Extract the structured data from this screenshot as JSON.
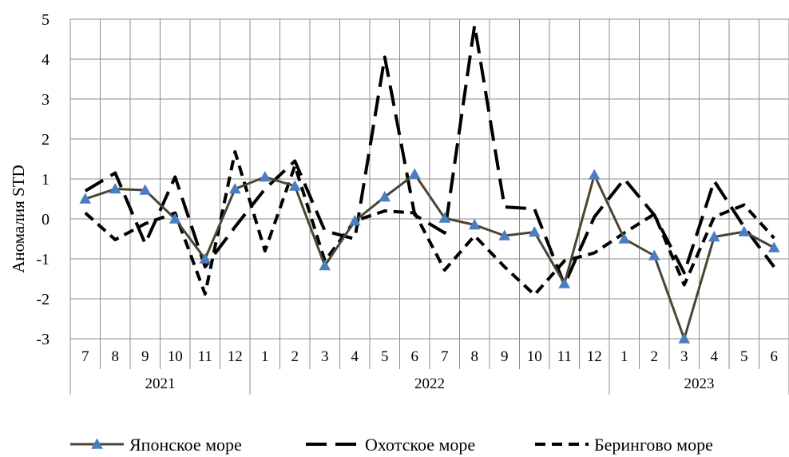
{
  "chart_data": {
    "type": "line",
    "title": "",
    "xlabel": "",
    "ylabel": "Аномалия STD",
    "ylim": [
      -3,
      5
    ],
    "yticks": [
      -3,
      -2,
      -1,
      0,
      1,
      2,
      3,
      4,
      5
    ],
    "grid": true,
    "legend_position": "bottom",
    "categories": [
      "7",
      "8",
      "9",
      "10",
      "11",
      "12",
      "1",
      "2",
      "3",
      "4",
      "5",
      "6",
      "7",
      "8",
      "9",
      "10",
      "11",
      "12",
      "1",
      "2",
      "3",
      "4",
      "5",
      "6"
    ],
    "year_groups": [
      {
        "label": "2021",
        "start": 0,
        "end": 5
      },
      {
        "label": "2022",
        "start": 6,
        "end": 17
      },
      {
        "label": "2023",
        "start": 18,
        "end": 23
      }
    ],
    "series": [
      {
        "name": "Японское море",
        "color": "#4a4433",
        "marker_color": "#4a7ebf",
        "style": "solid-triangle",
        "values": [
          0.5,
          0.75,
          0.72,
          0.0,
          -1.0,
          0.75,
          1.05,
          0.82,
          -1.17,
          -0.05,
          0.55,
          1.12,
          0.02,
          -0.15,
          -0.42,
          -0.33,
          -1.62,
          1.1,
          -0.5,
          -0.92,
          -3.0,
          -0.45,
          -0.32,
          -0.72
        ]
      },
      {
        "name": "Охотское море",
        "color": "#000000",
        "style": "long-dash",
        "values": [
          0.7,
          1.15,
          -0.62,
          1.05,
          -1.2,
          -0.2,
          0.75,
          1.45,
          -0.3,
          -0.5,
          4.05,
          0.1,
          -0.35,
          4.85,
          0.3,
          0.25,
          -1.65,
          0.05,
          1.0,
          0.1,
          -1.35,
          0.95,
          -0.2,
          -1.2
        ]
      },
      {
        "name": "Берингово море",
        "color": "#000000",
        "style": "short-dash",
        "values": [
          0.15,
          -0.52,
          -0.12,
          0.15,
          -1.88,
          1.68,
          -0.8,
          1.33,
          -1.05,
          -0.05,
          0.2,
          0.15,
          -1.28,
          -0.42,
          -1.2,
          -1.9,
          -1.05,
          -0.85,
          -0.35,
          0.12,
          -1.65,
          0.05,
          0.35,
          -0.48
        ]
      }
    ]
  }
}
